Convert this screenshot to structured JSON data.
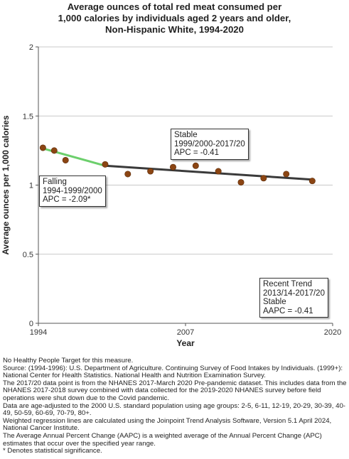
{
  "title_lines": [
    "Average ounces of total red meat consumed per",
    "1,000 calories by individuals aged 2 years and older,",
    "Non-Hispanic White,  1994-2020"
  ],
  "chart_data": {
    "type": "scatter",
    "xlabel": "Year",
    "ylabel": "Average ounces per 1,000 calories",
    "xlim": [
      1994,
      2020
    ],
    "ylim": [
      0,
      2
    ],
    "x_tick_labels": [
      "1994",
      "2007",
      "2020"
    ],
    "y_tick_labels": [
      "0",
      "0.5",
      "1",
      "1.5",
      "2"
    ],
    "grid": "horizontal",
    "points": [
      {
        "x": 1994.4,
        "y": 1.27
      },
      {
        "x": 1995.4,
        "y": 1.25
      },
      {
        "x": 1996.4,
        "y": 1.18
      },
      {
        "x": 1999.9,
        "y": 1.15
      },
      {
        "x": 2001.9,
        "y": 1.08
      },
      {
        "x": 2003.9,
        "y": 1.1
      },
      {
        "x": 2005.9,
        "y": 1.13
      },
      {
        "x": 2007.9,
        "y": 1.14
      },
      {
        "x": 2009.9,
        "y": 1.1
      },
      {
        "x": 2011.9,
        "y": 1.02
      },
      {
        "x": 2013.9,
        "y": 1.05
      },
      {
        "x": 2015.9,
        "y": 1.08
      },
      {
        "x": 2018.2,
        "y": 1.03
      }
    ],
    "trend_segments": [
      {
        "color": "#6ccf6c",
        "x": [
          1994.4,
          1999.9
        ],
        "y": [
          1.265,
          1.14
        ]
      },
      {
        "color": "#3a3a3a",
        "x": [
          1999.9,
          2018.2
        ],
        "y": [
          1.14,
          1.04
        ]
      }
    ],
    "annotations": [
      {
        "lines": [
          "Falling",
          "1994-1999/2000",
          "APC = -2.09*"
        ]
      },
      {
        "lines": [
          "Stable",
          "1999/2000-2017/20",
          "APC = -0.41"
        ]
      },
      {
        "lines": [
          "Recent Trend",
          "2013/14-2017/20",
          "Stable",
          "AAPC = -0.41"
        ]
      }
    ],
    "point_color": "#8b4513"
  },
  "notes": [
    "No Healthy People Target for this measure.",
    "Source: (1994-1996): U.S. Department of Agriculture. Continuing Survey of Food Intakes by Individuals. (1999+): National Center for Health Statistics. National Health and Nutrition Examination Survey.",
    "The 2017/20 data point is from the NHANES 2017-March 2020 Pre-pandemic dataset. This includes data from the NHANES 2017-2018 survey combined with data collected for the 2019-2020 NHANES survey before field operations were shut down due to the Covid pandemic.",
    "Data are age-adjusted to the 2000 U.S. standard population using age groups: 2-5, 6-11, 12-19, 20-29, 30-39, 40-49, 50-59, 60-69, 70-79, 80+.",
    "Weighted regression lines are calculated using the Joinpoint Trend Analysis Software, Version 5.1 April 2024, National Cancer Institute.",
    "The Average Annual Percent Change (AAPC) is a weighted average of the Annual Percent Change (APC) estimates that occur over the specified year range.",
    "* Denotes statistical significance."
  ]
}
